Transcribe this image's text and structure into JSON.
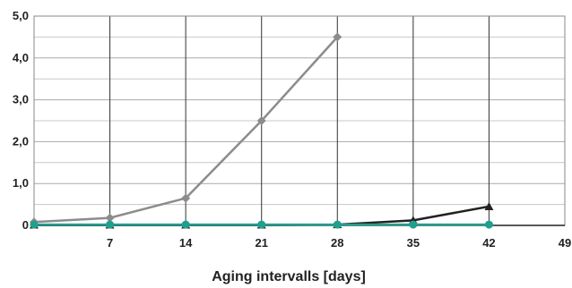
{
  "chart_data": {
    "type": "line",
    "xlabel": "Aging intervalls [days]",
    "ylabel": "",
    "xlim": [
      0,
      49
    ],
    "ylim": [
      0,
      5
    ],
    "x_ticks": [
      {
        "value": 7,
        "label": "7"
      },
      {
        "value": 14,
        "label": "14"
      },
      {
        "value": 21,
        "label": "21"
      },
      {
        "value": 28,
        "label": "28"
      },
      {
        "value": 35,
        "label": "35"
      },
      {
        "value": 42,
        "label": "42"
      },
      {
        "value": 49,
        "label": "49"
      }
    ],
    "y_ticks": [
      {
        "value": 0,
        "label": "0"
      },
      {
        "value": 1,
        "label": "1,0"
      },
      {
        "value": 2,
        "label": "2,0"
      },
      {
        "value": 3,
        "label": "3,0"
      },
      {
        "value": 4,
        "label": "4,0"
      },
      {
        "value": 5,
        "label": "5,0"
      }
    ],
    "grid": {
      "vertical": true,
      "horizontal": true
    },
    "series": [
      {
        "marker": "diamond",
        "color": "#8c8c8c",
        "points": [
          [
            0,
            0.08
          ],
          [
            7,
            0.18
          ],
          [
            14,
            0.65
          ],
          [
            21,
            2.5
          ],
          [
            28,
            4.5
          ]
        ]
      },
      {
        "marker": "triangle",
        "color": "#222222",
        "points": [
          [
            0,
            0.01
          ],
          [
            7,
            0.01
          ],
          [
            14,
            0.01
          ],
          [
            21,
            0.01
          ],
          [
            28,
            0.02
          ],
          [
            35,
            0.12
          ],
          [
            42,
            0.45
          ]
        ]
      },
      {
        "marker": "circle",
        "color": "#1fa08f",
        "points": [
          [
            0,
            0.02
          ],
          [
            7,
            0.02
          ],
          [
            14,
            0.02
          ],
          [
            21,
            0.02
          ],
          [
            28,
            0.02
          ],
          [
            35,
            0.02
          ],
          [
            42,
            0.02
          ]
        ]
      }
    ]
  }
}
